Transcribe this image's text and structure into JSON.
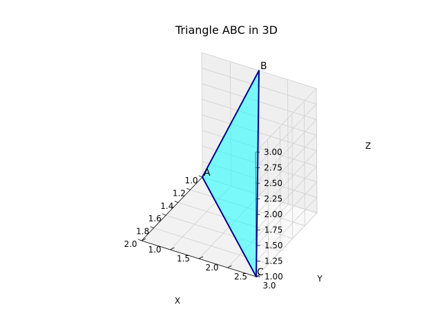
{
  "chart_data": {
    "type": "3d-polygon",
    "title": "Triangle ABC in 3D",
    "xlabel": "X",
    "ylabel": "Y",
    "zlabel": "Z",
    "xlim": [
      1.0,
      2.0
    ],
    "ylim": [
      1.0,
      3.0
    ],
    "zlim": [
      1.0,
      3.0
    ],
    "xticks": [
      "1.0",
      "1.2",
      "1.4",
      "1.6",
      "1.8",
      "2.0"
    ],
    "yticks": [
      "1.0",
      "1.5",
      "2.0",
      "2.5",
      "3.0"
    ],
    "zticks": [
      "1.00",
      "1.25",
      "1.50",
      "1.75",
      "2.00",
      "2.25",
      "2.50",
      "2.75",
      "3.00"
    ],
    "grid": true,
    "fill_color": "#00ffff",
    "fill_alpha": 0.5,
    "edge_color": "#00008b",
    "points": [
      {
        "label": "A",
        "x": 1.0,
        "y": 1.0,
        "z": 1.0
      },
      {
        "label": "B",
        "x": 1.0,
        "y": 2.0,
        "z": 3.0
      },
      {
        "label": "C",
        "x": 2.0,
        "y": 3.0,
        "z": 1.0
      }
    ]
  }
}
